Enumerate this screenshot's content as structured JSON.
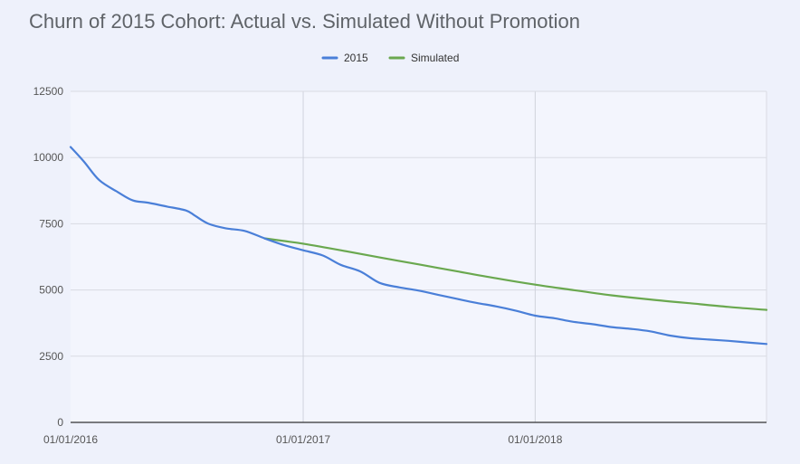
{
  "chart_data": {
    "type": "line",
    "title": "Churn of 2015 Cohort: Actual vs. Simulated Without Promotion",
    "xlabel": "",
    "ylabel": "",
    "x_ticks": [
      "01/01/2016",
      "01/01/2017",
      "01/01/2018"
    ],
    "y_ticks": [
      0,
      2500,
      5000,
      7500,
      10000,
      12500
    ],
    "xlim": [
      "2016-01-01",
      "2018-12-31"
    ],
    "ylim": [
      0,
      12500
    ],
    "grid": true,
    "legend": "top-center",
    "series": [
      {
        "name": "2015",
        "color": "#4a7fd8",
        "points": [
          [
            "2016-01-01",
            10400
          ],
          [
            "2016-01-22",
            9850
          ],
          [
            "2016-02-15",
            9150
          ],
          [
            "2016-03-15",
            8700
          ],
          [
            "2016-04-08",
            8380
          ],
          [
            "2016-05-01",
            8300
          ],
          [
            "2016-06-01",
            8150
          ],
          [
            "2016-07-01",
            8000
          ],
          [
            "2016-07-15",
            7800
          ],
          [
            "2016-08-05",
            7500
          ],
          [
            "2016-09-01",
            7330
          ],
          [
            "2016-10-01",
            7230
          ],
          [
            "2016-11-01",
            6950
          ],
          [
            "2016-12-01",
            6700
          ],
          [
            "2017-01-01",
            6500
          ],
          [
            "2017-02-01",
            6300
          ],
          [
            "2017-03-01",
            5950
          ],
          [
            "2017-04-01",
            5700
          ],
          [
            "2017-05-01",
            5270
          ],
          [
            "2017-06-01",
            5100
          ],
          [
            "2017-07-01",
            4980
          ],
          [
            "2017-08-01",
            4820
          ],
          [
            "2017-09-01",
            4660
          ],
          [
            "2017-10-01",
            4510
          ],
          [
            "2017-11-01",
            4380
          ],
          [
            "2017-12-01",
            4220
          ],
          [
            "2018-01-01",
            4030
          ],
          [
            "2018-02-01",
            3930
          ],
          [
            "2018-03-01",
            3800
          ],
          [
            "2018-04-01",
            3710
          ],
          [
            "2018-05-01",
            3600
          ],
          [
            "2018-06-01",
            3530
          ],
          [
            "2018-07-01",
            3440
          ],
          [
            "2018-08-01",
            3280
          ],
          [
            "2018-09-01",
            3180
          ],
          [
            "2018-10-01",
            3130
          ],
          [
            "2018-11-01",
            3080
          ],
          [
            "2018-12-01",
            3020
          ],
          [
            "2018-12-31",
            2960
          ]
        ]
      },
      {
        "name": "Simulated",
        "color": "#6aa84f",
        "points": [
          [
            "2016-11-01",
            6950
          ],
          [
            "2016-12-01",
            6850
          ],
          [
            "2017-01-01",
            6750
          ],
          [
            "2017-03-01",
            6500
          ],
          [
            "2017-05-01",
            6230
          ],
          [
            "2017-07-01",
            5970
          ],
          [
            "2017-09-01",
            5700
          ],
          [
            "2017-11-01",
            5440
          ],
          [
            "2018-01-01",
            5200
          ],
          [
            "2018-03-01",
            5000
          ],
          [
            "2018-05-01",
            4800
          ],
          [
            "2018-07-01",
            4640
          ],
          [
            "2018-09-01",
            4500
          ],
          [
            "2018-11-01",
            4360
          ],
          [
            "2018-12-31",
            4250
          ]
        ]
      }
    ]
  }
}
